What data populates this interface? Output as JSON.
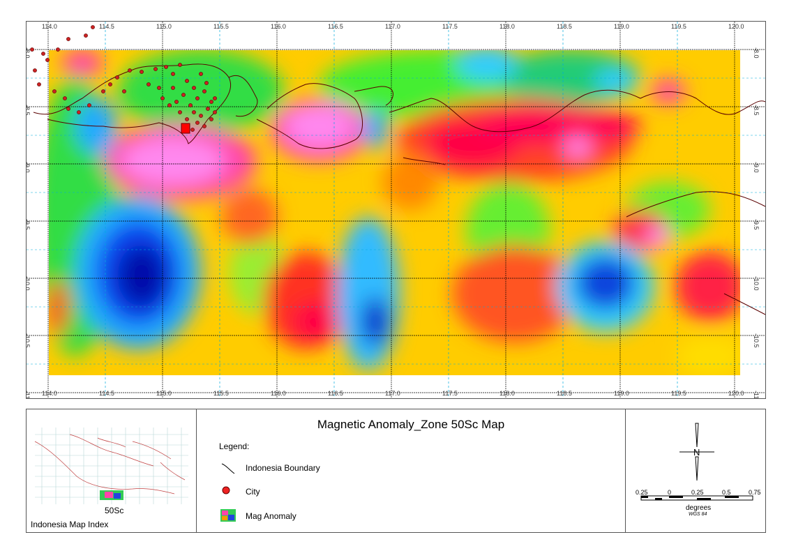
{
  "map": {
    "title": "Magnetic Anomaly_Zone 50Sc Map",
    "lon_ticks": [
      "114.0",
      "114.5",
      "115.0",
      "115.5",
      "116.0",
      "116.5",
      "117.0",
      "117.5",
      "118.0",
      "118.5",
      "119.0",
      "119.5",
      "120.0"
    ],
    "lat_ticks": [
      "-8.0",
      "-8.5",
      "-9.0",
      "-9.5",
      "-10.0",
      "-10.5",
      "-11.0"
    ],
    "lon_range": [
      113.85,
      120.15
    ],
    "lat_range": [
      -7.8,
      -11.1
    ],
    "colors": {
      "high": "#ff66ff",
      "mid_high": "#ff0044",
      "mid": "#ff9900",
      "neutral": "#ffff00",
      "mid_low": "#44ff44",
      "low": "#00ccff",
      "lowest": "#0022aa"
    }
  },
  "legend": {
    "heading": "Legend:",
    "items": [
      {
        "label": "Indonesia Boundary",
        "icon": "boundary-line-icon"
      },
      {
        "label": "City",
        "icon": "city-dot-icon"
      },
      {
        "label": "Mag Anomaly",
        "icon": "mag-anomaly-swatch-icon"
      }
    ]
  },
  "index": {
    "zone_label": "50Sc",
    "caption": "Indonesia Map Index"
  },
  "scale": {
    "ticks": [
      "0.25",
      "0",
      "0.25",
      "0.5",
      "0.75"
    ],
    "unit": "degrees",
    "datum": "WGS 84"
  }
}
